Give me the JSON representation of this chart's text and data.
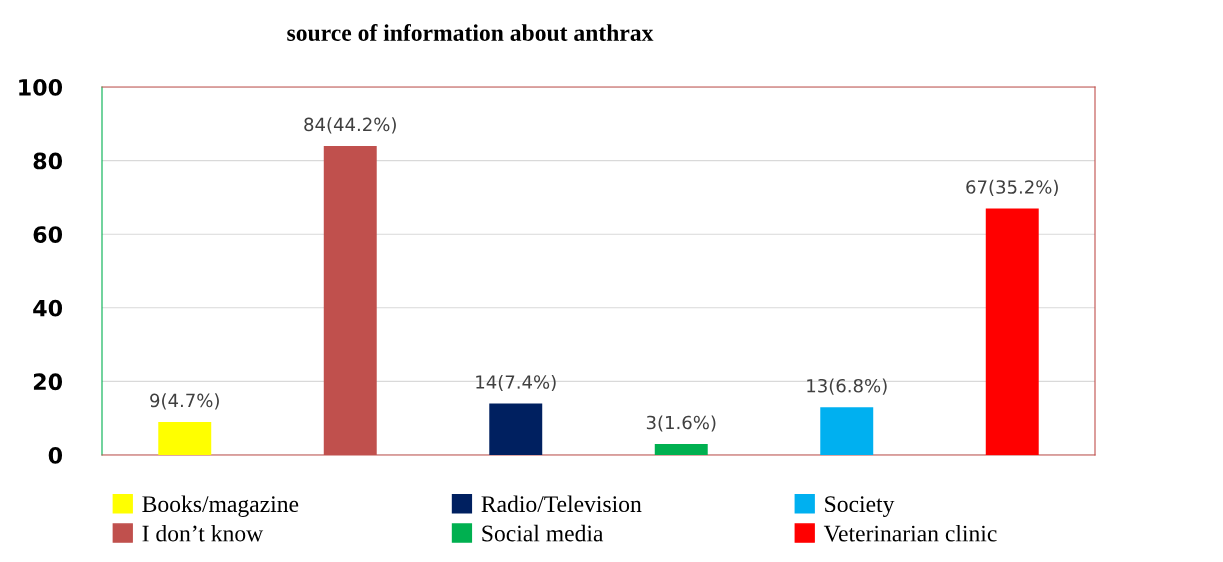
{
  "chart_data": {
    "type": "bar",
    "title": "source of information about anthrax",
    "categories": [
      null,
      null,
      null,
      null,
      null,
      null
    ],
    "series": [
      {
        "name": "Books/magazine",
        "color": "#ffff00",
        "values": [
          9,
          null,
          null,
          null,
          null,
          null
        ],
        "value_labels": [
          "9(4.7%)",
          null,
          null,
          null,
          null,
          null
        ]
      },
      {
        "name": "I don’t know",
        "color": "#c0504d",
        "values": [
          null,
          84,
          null,
          null,
          null,
          null
        ],
        "value_labels": [
          null,
          "84(44.2%)",
          null,
          null,
          null,
          null
        ]
      },
      {
        "name": "Radio/Television",
        "color": "#002060",
        "values": [
          null,
          null,
          14,
          null,
          null,
          null
        ],
        "value_labels": [
          null,
          null,
          "14(7.4%)",
          null,
          null,
          null
        ]
      },
      {
        "name": "Social media",
        "color": "#00b050",
        "values": [
          null,
          null,
          null,
          3,
          null,
          null
        ],
        "value_labels": [
          null,
          null,
          null,
          "3(1.6%)",
          null,
          null
        ]
      },
      {
        "name": "Society",
        "color": "#00b0f0",
        "values": [
          null,
          null,
          null,
          null,
          13,
          null
        ],
        "value_labels": [
          null,
          null,
          null,
          null,
          "13(6.8%)",
          null
        ]
      },
      {
        "name": "Veterinarian clinic",
        "color": "#ff0000",
        "values": [
          null,
          null,
          null,
          null,
          null,
          67
        ],
        "value_labels": [
          null,
          null,
          null,
          null,
          null,
          "67(35.2%)"
        ]
      }
    ],
    "ylim": [
      0,
      100
    ],
    "yticks": [
      0,
      20,
      40,
      60,
      80,
      100
    ],
    "grid": "y",
    "legend": "bottom"
  }
}
